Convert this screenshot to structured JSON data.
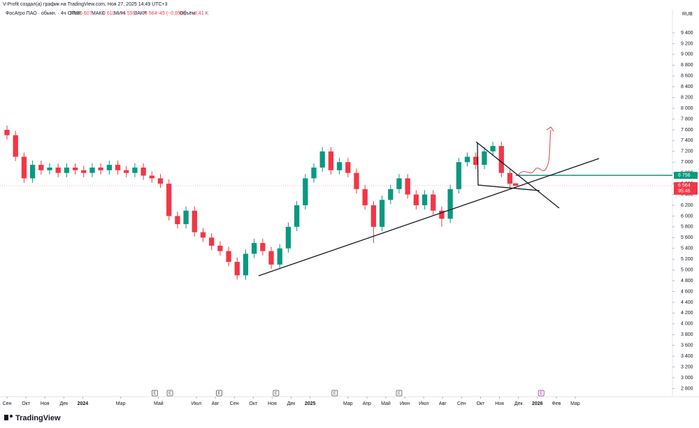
{
  "header": {
    "credit": "V-Profit создал(а) график на TradingView.com, Ноя 27, 2025 14:49 UTC+3",
    "symbol": "ФосАгро ПАО · обыкн. · 4ч · RUS",
    "open_label": "ОТКР",
    "open": "6 607",
    "high_label": "МАКС",
    "high": "6 610",
    "low_label": "МИН",
    "low": "6 559",
    "close_label": "ЗАКР",
    "close": "6 564",
    "change": "−45 (−0,65%)",
    "volume_label": "Объём",
    "volume": "8,41 K"
  },
  "currency": "RUB",
  "logo": "TradingView",
  "chart_data": {
    "type": "candlestick",
    "x": [
      0,
      0.45,
      0.9,
      1.35,
      1.8,
      2.25,
      2.7,
      3.15,
      3.6,
      4.05,
      4.5,
      4.95,
      5.4,
      5.85,
      6.3,
      6.75,
      7.2,
      7.65,
      8.1,
      8.55,
      9,
      9.45,
      9.9,
      10.35,
      10.8,
      11.25,
      11.7,
      12.15,
      12.6,
      13.05,
      13.5,
      13.95,
      14.4,
      14.85,
      15.3,
      15.75,
      16.2,
      16.65,
      17.1,
      17.55,
      18,
      18.45,
      18.9,
      19.35,
      19.8,
      20.25,
      20.7,
      21.15,
      21.6,
      22.05,
      22.5,
      22.95,
      23.4,
      23.85,
      24.3,
      24.75,
      25.2,
      25.65,
      26.1,
      26.55,
      26.85
    ],
    "open": [
      7600,
      7500,
      7100,
      6700,
      6950,
      6850,
      6900,
      6800,
      6900,
      6850,
      6800,
      6900,
      6850,
      6950,
      6850,
      6800,
      6900,
      6750,
      6700,
      6600,
      6000,
      5850,
      6100,
      5700,
      5600,
      5450,
      5350,
      5150,
      4900,
      5300,
      5500,
      5350,
      5100,
      5400,
      5800,
      6200,
      6700,
      6900,
      7200,
      6850,
      7000,
      6800,
      6500,
      6200,
      5800,
      6300,
      6500,
      6700,
      6400,
      6200,
      6400,
      6100,
      5950,
      6500,
      7000,
      7100,
      6950,
      7200,
      7300,
      6800,
      6607
    ],
    "high": [
      7680,
      7580,
      7180,
      7030,
      7030,
      6980,
      6980,
      6980,
      6980,
      6930,
      6980,
      6980,
      7030,
      7030,
      6930,
      6980,
      6980,
      6830,
      6780,
      6680,
      6080,
      6180,
      6180,
      5780,
      5680,
      5530,
      5430,
      5230,
      5380,
      5580,
      5580,
      5430,
      5480,
      5880,
      6280,
      6780,
      6980,
      7280,
      7280,
      7080,
      7080,
      6880,
      6580,
      6280,
      6380,
      6580,
      6780,
      6780,
      6480,
      6480,
      6480,
      6180,
      6580,
      7080,
      7180,
      7180,
      7280,
      7380,
      7380,
      6880,
      6610
    ],
    "low": [
      7420,
      7020,
      6620,
      6620,
      6770,
      6770,
      6720,
      6720,
      6770,
      6720,
      6720,
      6770,
      6770,
      6770,
      6720,
      6720,
      6670,
      6620,
      6520,
      5920,
      5770,
      5770,
      5620,
      5520,
      5370,
      5270,
      5070,
      4820,
      4820,
      5220,
      5270,
      5020,
      5020,
      5320,
      5720,
      6120,
      6620,
      6820,
      6770,
      6770,
      6720,
      6420,
      6120,
      5500,
      5720,
      6220,
      6420,
      6320,
      6120,
      6120,
      6020,
      5800,
      5870,
      6420,
      6920,
      6870,
      6870,
      7120,
      6720,
      6520,
      6559
    ],
    "close": [
      7500,
      7100,
      6700,
      6950,
      6850,
      6900,
      6800,
      6900,
      6850,
      6800,
      6900,
      6850,
      6950,
      6850,
      6800,
      6900,
      6750,
      6700,
      6600,
      6000,
      5850,
      6100,
      5700,
      5600,
      5450,
      5350,
      5150,
      4900,
      5300,
      5500,
      5350,
      5100,
      5400,
      5800,
      6200,
      6700,
      6900,
      7200,
      6850,
      7000,
      6800,
      6500,
      6200,
      5800,
      6300,
      6500,
      6700,
      6400,
      6200,
      6400,
      6100,
      5950,
      6500,
      7000,
      7100,
      6950,
      7200,
      7300,
      6800,
      6600,
      6564
    ],
    "up_color": "#089981",
    "down_color": "#f23645",
    "xlim": [
      -0.37,
      35.13
    ],
    "xticks": [
      {
        "value": 0,
        "label": "Сен"
      },
      {
        "value": 1,
        "label": "Окт"
      },
      {
        "value": 2,
        "label": "Ноя"
      },
      {
        "value": 3,
        "label": "Дек"
      },
      {
        "value": 4,
        "label": "2024"
      },
      {
        "value": 6,
        "label": "Мар"
      },
      {
        "value": 8,
        "label": "Май"
      },
      {
        "value": 10,
        "label": "Июл"
      },
      {
        "value": 11,
        "label": "Авг"
      },
      {
        "value": 12,
        "label": "Сен"
      },
      {
        "value": 13,
        "label": "Окт"
      },
      {
        "value": 14,
        "label": "Ноя"
      },
      {
        "value": 15,
        "label": "Дек"
      },
      {
        "value": 16,
        "label": "2025"
      },
      {
        "value": 18,
        "label": "Мар"
      },
      {
        "value": 19,
        "label": "Апр"
      },
      {
        "value": 20,
        "label": "Май"
      },
      {
        "value": 21,
        "label": "Июн"
      },
      {
        "value": 22,
        "label": "Июл"
      },
      {
        "value": 23,
        "label": "Авг"
      },
      {
        "value": 24,
        "label": "Сен"
      },
      {
        "value": 25,
        "label": "Окт"
      },
      {
        "value": 26,
        "label": "Ноя"
      },
      {
        "value": 27,
        "label": "Дек"
      },
      {
        "value": 28,
        "label": "2026"
      },
      {
        "value": 29,
        "label": "Фев"
      },
      {
        "value": 30,
        "label": "Мар"
      }
    ],
    "ylim": [
      2650,
      9750
    ],
    "yticks": [
      {
        "value": 9400,
        "label": "9 400"
      },
      {
        "value": 9200,
        "label": "9 200"
      },
      {
        "value": 9000,
        "label": "9 000"
      },
      {
        "value": 8800,
        "label": "8 800"
      },
      {
        "value": 8600,
        "label": "8 600"
      },
      {
        "value": 8400,
        "label": "8 400"
      },
      {
        "value": 8200,
        "label": "8 200"
      },
      {
        "value": 8000,
        "label": "8 000"
      },
      {
        "value": 7800,
        "label": "7 800"
      },
      {
        "value": 7600,
        "label": "7 600"
      },
      {
        "value": 7400,
        "label": "7 400"
      },
      {
        "value": 7200,
        "label": "7 200"
      },
      {
        "value": 7000,
        "label": "7 000"
      },
      {
        "value": 6800,
        "label": "6 800"
      },
      {
        "value": 6600,
        "label": "6 600"
      },
      {
        "value": 6400,
        "label": "6 400"
      },
      {
        "value": 6200,
        "label": "6 200"
      },
      {
        "value": 6000,
        "label": "6 000"
      },
      {
        "value": 5800,
        "label": "5 800"
      },
      {
        "value": 5600,
        "label": "5 600"
      },
      {
        "value": 5400,
        "label": "5 400"
      },
      {
        "value": 5200,
        "label": "5 200"
      },
      {
        "value": 5000,
        "label": "5 000"
      },
      {
        "value": 4800,
        "label": "4 800"
      },
      {
        "value": 4600,
        "label": "4 600"
      },
      {
        "value": 4400,
        "label": "4 400"
      },
      {
        "value": 4200,
        "label": "4 200"
      },
      {
        "value": 4000,
        "label": "4 000"
      },
      {
        "value": 3800,
        "label": "3 800"
      },
      {
        "value": 3600,
        "label": "3 600"
      },
      {
        "value": 3400,
        "label": "3 400"
      },
      {
        "value": 3200,
        "label": "3 200"
      },
      {
        "value": 3000,
        "label": "3 000"
      },
      {
        "value": 2800,
        "label": "2 800"
      }
    ],
    "level": {
      "value": 6756,
      "label": "6 756",
      "color": "#089981"
    },
    "last_price": {
      "value": 6564,
      "label": "6 564",
      "countdown": "95:46",
      "color": "#f23645"
    },
    "events": {
      "label": "E",
      "x": [
        7.8,
        8.6,
        11.2,
        14.2,
        17.3,
        20.7,
        28.2
      ]
    }
  }
}
